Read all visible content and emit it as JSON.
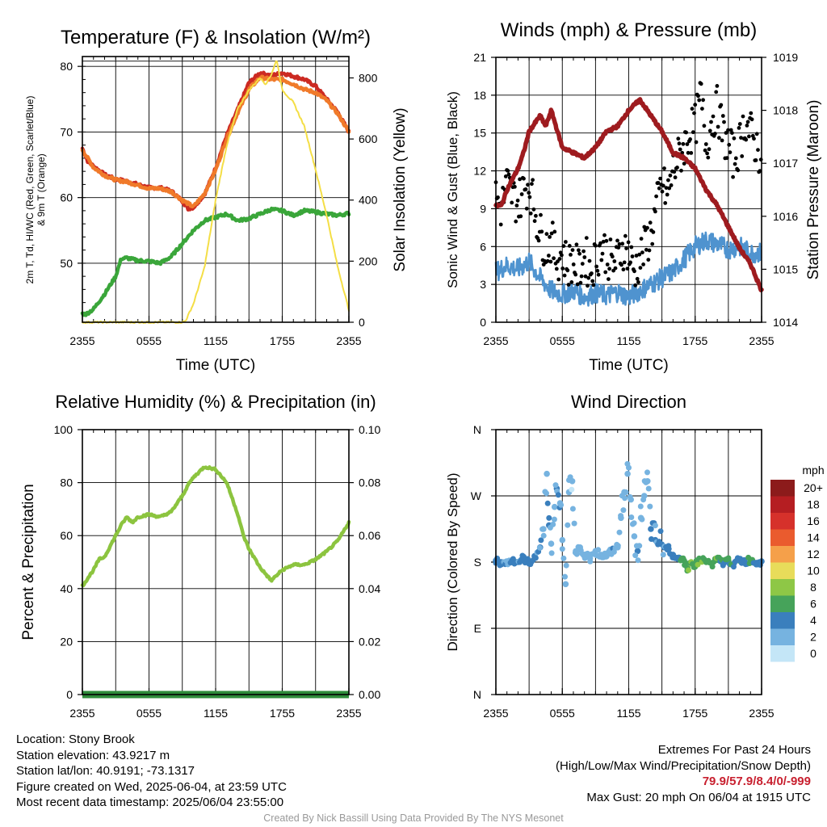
{
  "info": {
    "location": "Location: Stony Brook",
    "elevation": "Station elevation: 43.9217 m",
    "latlon": "Station lat/lon: 40.9191; -73.1317",
    "created": "Figure created on Wed, 2025-06-04, at 23:59 UTC",
    "recent": "Most recent data timestamp: 2025/06/04 23:55:00",
    "extremes_title": "Extremes For Past 24 Hours",
    "extremes_fields": "(High/Low/Max Wind/Precipitation/Snow Depth)",
    "extremes_values": "79.9/57.9/8.4/0/-999",
    "max_gust": "Max Gust: 20 mph On 06/04 at 1915 UTC",
    "footer": "Created By Nick Bassill Using Data Provided By The NYS Mesonet",
    "extremes_color": "#c8202f",
    "footer_color": "#999999"
  },
  "chart_data": [
    {
      "type": "line",
      "title": "Temperature (F) & Insolation (W/m²)",
      "xlabel": "Time (UTC)",
      "ylabel_left": [
        "2m T, Td, HI/WC (Red, Green, Scarlet/Blue)",
        "& 9m T (Orange)"
      ],
      "ylabel_right": "Solar Insolation (Yellow)",
      "xticks": [
        "2355",
        "0555",
        "1155",
        "1755",
        "2355"
      ],
      "x_hours": [
        0,
        6,
        12,
        18,
        24
      ],
      "yticks_left": [
        50,
        60,
        70,
        80
      ],
      "yticks_right": [
        0,
        200,
        400,
        600,
        800
      ],
      "ylim_left": [
        41,
        81.5
      ],
      "ylim_right": [
        0,
        870
      ],
      "grid": true,
      "series": [
        {
          "name": "2m T",
          "color": "#cc2a22",
          "axis": "left",
          "x": [
            0,
            0.5,
            1,
            2,
            3,
            4,
            5,
            6,
            7,
            8,
            9,
            9.5,
            10,
            11,
            12,
            13,
            14,
            15,
            16,
            17,
            18,
            19,
            20,
            21,
            22,
            23,
            24
          ],
          "y": [
            67.5,
            65.5,
            64.8,
            63.5,
            62.8,
            62.5,
            62,
            61.5,
            61.5,
            61,
            59.5,
            58.3,
            58.5,
            60.5,
            64.5,
            69.5,
            73.5,
            77.5,
            79,
            78.6,
            79,
            78.5,
            78,
            77,
            75,
            73,
            70
          ]
        },
        {
          "name": "9m T",
          "color": "#f07a2a",
          "axis": "left",
          "x": [
            0,
            1,
            2,
            3,
            4,
            5,
            6,
            7,
            8,
            9,
            10,
            11,
            12,
            13,
            14,
            15,
            16,
            17,
            18,
            19,
            20,
            21,
            22,
            23,
            24
          ],
          "y": [
            67.3,
            64.6,
            63.4,
            62.7,
            62.4,
            61.9,
            61.4,
            61.4,
            60.9,
            59.6,
            58.6,
            60.6,
            64.2,
            69,
            73,
            76.5,
            78.3,
            78,
            78,
            77.3,
            76.5,
            76,
            74.8,
            72.8,
            70
          ]
        },
        {
          "name": "Td",
          "color": "#3aa63a",
          "axis": "left",
          "x": [
            0,
            0.3,
            1,
            2,
            3,
            3.5,
            4,
            5,
            6,
            7,
            8,
            9,
            10,
            11,
            12,
            13,
            14,
            15,
            16,
            17,
            18,
            19,
            20,
            21,
            22,
            23,
            24
          ],
          "y": [
            42.3,
            42.2,
            43,
            45.3,
            48,
            50.7,
            50.8,
            50.4,
            50.3,
            50,
            51,
            53,
            55,
            56.5,
            57,
            57.5,
            56.5,
            56.8,
            57.5,
            58.2,
            58,
            57.3,
            58,
            57.8,
            57.5,
            57.3,
            57.6
          ]
        },
        {
          "name": "Solar Insolation",
          "color": "#f4de46",
          "axis": "right",
          "x": [
            0,
            9,
            9.3,
            10,
            11,
            12,
            12.5,
            13,
            14,
            15,
            16,
            16.5,
            17,
            17.5,
            18,
            19,
            20,
            21,
            22,
            23,
            24
          ],
          "y": [
            0,
            0,
            5,
            60,
            180,
            400,
            490,
            580,
            700,
            760,
            800,
            780,
            810,
            860,
            760,
            720,
            640,
            500,
            350,
            180,
            40
          ]
        }
      ]
    },
    {
      "type": "line",
      "title": "Winds (mph) & Pressure (mb)",
      "xlabel": "Time (UTC)",
      "ylabel_left": "Sonic Wind & Gust (Blue, Black)",
      "ylabel_right": "Station Pressure (Maroon)",
      "xticks": [
        "2355",
        "0555",
        "1155",
        "1755",
        "2355"
      ],
      "x_hours": [
        0,
        6,
        12,
        18,
        24
      ],
      "yticks_left": [
        0,
        3,
        6,
        9,
        12,
        15,
        18,
        21
      ],
      "yticks_right": [
        1014,
        1015,
        1016,
        1017,
        1018,
        1019
      ],
      "ylim_left": [
        0,
        21
      ],
      "ylim_right": [
        1014,
        1019
      ],
      "grid": true,
      "series": [
        {
          "name": "Sonic Wind",
          "color": "#4f93cf",
          "axis": "left",
          "x": [
            0,
            1,
            2,
            3,
            4,
            5,
            6,
            7,
            8,
            9,
            10,
            11,
            12,
            13,
            14,
            15,
            16,
            17,
            18,
            19,
            20,
            21,
            22,
            23,
            24
          ],
          "y": [
            4,
            4.5,
            4.2,
            4.8,
            3.5,
            2.5,
            2.2,
            2.5,
            2,
            2.3,
            2.1,
            2.4,
            2,
            2.5,
            3,
            3.5,
            4,
            5,
            6,
            6.5,
            6.2,
            5.8,
            6,
            5.5,
            5.5
          ]
        },
        {
          "name": "Gust",
          "color": "#000000",
          "axis": "left",
          "marker": "dot",
          "x": [
            0,
            0.5,
            1,
            1.5,
            2,
            2.5,
            3,
            3.5,
            4,
            4.5,
            5,
            5.5,
            6,
            6.5,
            7,
            7.5,
            8,
            8.5,
            9,
            9.5,
            10,
            10.5,
            11,
            11.5,
            12,
            12.5,
            13,
            13.5,
            14,
            14.5,
            15,
            15.5,
            16,
            16.5,
            17,
            17.5,
            18,
            18.5,
            19,
            19.5,
            20,
            20.5,
            21,
            21.5,
            22,
            22.5,
            23,
            23.5,
            24
          ],
          "y": [
            10,
            9,
            11,
            10,
            9.5,
            10.5,
            11,
            9,
            7,
            6,
            6.5,
            5,
            5.5,
            4.5,
            5,
            4,
            5.5,
            4,
            5,
            6,
            5.5,
            4.5,
            5,
            6,
            5.5,
            4,
            5,
            6,
            7,
            9,
            11,
            10,
            12,
            13,
            14,
            15,
            15.5,
            18,
            14,
            16,
            17,
            15,
            14,
            13,
            14,
            16,
            15,
            14,
            13
          ]
        },
        {
          "name": "Station Pressure",
          "color": "#9e1b1f",
          "axis": "right",
          "x": [
            0,
            0.5,
            1,
            2,
            2.5,
            3,
            4,
            4.5,
            5,
            6,
            7,
            8,
            9,
            10,
            11,
            12,
            13,
            14,
            15,
            16,
            17,
            18,
            19,
            20,
            21,
            22,
            23,
            24
          ],
          "y": [
            1016.2,
            1016.2,
            1016.5,
            1016.9,
            1017.2,
            1017.6,
            1017.9,
            1017.7,
            1018.0,
            1017.3,
            1017.2,
            1017.1,
            1017.3,
            1017.6,
            1017.7,
            1018.0,
            1018.2,
            1017.9,
            1017.6,
            1017.2,
            1017.1,
            1016.9,
            1016.5,
            1016.2,
            1015.8,
            1015.4,
            1015.1,
            1014.6
          ]
        }
      ]
    },
    {
      "type": "line",
      "title": "Relative Humidity (%) & Precipitation (in)",
      "xlabel": "",
      "ylabel_left": "Percent & Precipitation",
      "ylabel_right": "",
      "xticks": [
        "2355",
        "0555",
        "1155",
        "1755",
        "2355"
      ],
      "x_hours": [
        0,
        6,
        12,
        18,
        24
      ],
      "yticks_left": [
        0,
        20,
        40,
        60,
        80,
        100
      ],
      "yticks_right": [
        "0.00",
        "0.02",
        "0.04",
        "0.06",
        "0.08",
        "0.10"
      ],
      "ylim_left": [
        0,
        100
      ],
      "ylim_right": [
        0,
        0.1
      ],
      "grid": true,
      "series": [
        {
          "name": "Relative Humidity",
          "color": "#8cc43f",
          "axis": "left",
          "x": [
            0,
            0.5,
            1,
            1.5,
            2,
            3,
            3.5,
            4,
            4.5,
            5,
            6,
            7,
            7.5,
            8,
            8.5,
            9,
            9.5,
            10,
            11,
            12,
            13,
            14,
            14.5,
            15,
            16,
            17,
            18,
            19,
            20,
            21,
            22,
            23,
            24
          ],
          "y": [
            41,
            44,
            47,
            51,
            52,
            60,
            64,
            67,
            65,
            67,
            68,
            67,
            68,
            69,
            72,
            75,
            79,
            82,
            86,
            85,
            80,
            68,
            60,
            55,
            48,
            43,
            47,
            49,
            49,
            51,
            54,
            58,
            65
          ]
        },
        {
          "name": "Precipitation",
          "color": "#2e8b3a",
          "axis": "right",
          "x": [
            0,
            24
          ],
          "y": [
            0,
            0
          ]
        }
      ]
    },
    {
      "type": "scatter",
      "title": "Wind Direction",
      "xlabel": "",
      "ylabel_left": "Direction (Colored By Speed)",
      "xticks": [
        "2355",
        "0555",
        "1155",
        "1755",
        "2355"
      ],
      "x_hours": [
        0,
        6,
        12,
        18,
        24
      ],
      "yticks_left": [
        "N",
        "E",
        "S",
        "W",
        "N"
      ],
      "ylim_left": [
        0,
        360
      ],
      "grid": true,
      "legend": {
        "title": "mph",
        "position": "right",
        "labels": [
          "20+",
          "18",
          "16",
          "14",
          "12",
          "10",
          "8",
          "6",
          "4",
          "2",
          "0"
        ],
        "colors": [
          "#8c1b1b",
          "#b51e22",
          "#d6312b",
          "#ea5b2e",
          "#f5a04a",
          "#e8dc5a",
          "#8ec746",
          "#46a35a",
          "#3a7fbd",
          "#76b3e0",
          "#c4e6f7"
        ]
      },
      "points": [
        {
          "t": 0.0,
          "dir": 182,
          "spd": 4
        },
        {
          "t": 0.5,
          "dir": 180,
          "spd": 4
        },
        {
          "t": 1.0,
          "dir": 178,
          "spd": 3
        },
        {
          "t": 1.5,
          "dir": 183,
          "spd": 4
        },
        {
          "t": 2.0,
          "dir": 180,
          "spd": 3
        },
        {
          "t": 2.5,
          "dir": 185,
          "spd": 4
        },
        {
          "t": 3.0,
          "dir": 178,
          "spd": 3
        },
        {
          "t": 3.5,
          "dir": 188,
          "spd": 4
        },
        {
          "t": 4.0,
          "dir": 200,
          "spd": 3
        },
        {
          "t": 4.3,
          "dir": 225,
          "spd": 2
        },
        {
          "t": 4.6,
          "dir": 300,
          "spd": 2
        },
        {
          "t": 4.8,
          "dir": 230,
          "spd": 3
        },
        {
          "t": 5.0,
          "dir": 205,
          "spd": 2
        },
        {
          "t": 5.3,
          "dir": 255,
          "spd": 2
        },
        {
          "t": 5.5,
          "dir": 280,
          "spd": 3
        },
        {
          "t": 5.8,
          "dir": 260,
          "spd": 2
        },
        {
          "t": 6.0,
          "dir": 210,
          "spd": 2
        },
        {
          "t": 6.3,
          "dir": 150,
          "spd": 2
        },
        {
          "t": 6.6,
          "dir": 275,
          "spd": 2
        },
        {
          "t": 6.9,
          "dir": 290,
          "spd": 1
        },
        {
          "t": 7.2,
          "dir": 193,
          "spd": 2
        },
        {
          "t": 7.6,
          "dir": 200,
          "spd": 2
        },
        {
          "t": 8.0,
          "dir": 190,
          "spd": 2
        },
        {
          "t": 8.5,
          "dir": 185,
          "spd": 2
        },
        {
          "t": 9.0,
          "dir": 195,
          "spd": 2
        },
        {
          "t": 9.5,
          "dir": 190,
          "spd": 2
        },
        {
          "t": 10.0,
          "dir": 188,
          "spd": 2
        },
        {
          "t": 10.5,
          "dir": 195,
          "spd": 3
        },
        {
          "t": 11.0,
          "dir": 200,
          "spd": 2
        },
        {
          "t": 11.3,
          "dir": 240,
          "spd": 2
        },
        {
          "t": 11.6,
          "dir": 275,
          "spd": 2
        },
        {
          "t": 11.9,
          "dir": 300,
          "spd": 2
        },
        {
          "t": 12.2,
          "dir": 265,
          "spd": 2
        },
        {
          "t": 12.5,
          "dir": 215,
          "spd": 2
        },
        {
          "t": 12.8,
          "dir": 195,
          "spd": 3
        },
        {
          "t": 13.1,
          "dir": 240,
          "spd": 2
        },
        {
          "t": 13.4,
          "dir": 270,
          "spd": 2
        },
        {
          "t": 13.7,
          "dir": 290,
          "spd": 2
        },
        {
          "t": 14.0,
          "dir": 225,
          "spd": 3
        },
        {
          "t": 14.4,
          "dir": 210,
          "spd": 3
        },
        {
          "t": 14.8,
          "dir": 205,
          "spd": 4
        },
        {
          "t": 15.2,
          "dir": 200,
          "spd": 3
        },
        {
          "t": 15.6,
          "dir": 198,
          "spd": 4
        },
        {
          "t": 16.0,
          "dir": 190,
          "spd": 4
        },
        {
          "t": 16.5,
          "dir": 186,
          "spd": 5
        },
        {
          "t": 17.0,
          "dir": 182,
          "spd": 6
        },
        {
          "t": 17.3,
          "dir": 172,
          "spd": 6
        },
        {
          "t": 17.6,
          "dir": 178,
          "spd": 8
        },
        {
          "t": 18.0,
          "dir": 176,
          "spd": 6
        },
        {
          "t": 18.5,
          "dir": 184,
          "spd": 7
        },
        {
          "t": 19.0,
          "dir": 180,
          "spd": 6
        },
        {
          "t": 19.5,
          "dir": 178,
          "spd": 7
        },
        {
          "t": 20.0,
          "dir": 183,
          "spd": 6
        },
        {
          "t": 20.5,
          "dir": 179,
          "spd": 5
        },
        {
          "t": 21.0,
          "dir": 182,
          "spd": 6
        },
        {
          "t": 21.5,
          "dir": 178,
          "spd": 4
        },
        {
          "t": 22.0,
          "dir": 182,
          "spd": 5
        },
        {
          "t": 22.5,
          "dir": 180,
          "spd": 4
        },
        {
          "t": 23.0,
          "dir": 183,
          "spd": 6
        },
        {
          "t": 23.5,
          "dir": 179,
          "spd": 4
        },
        {
          "t": 24.0,
          "dir": 181,
          "spd": 4
        }
      ]
    }
  ]
}
